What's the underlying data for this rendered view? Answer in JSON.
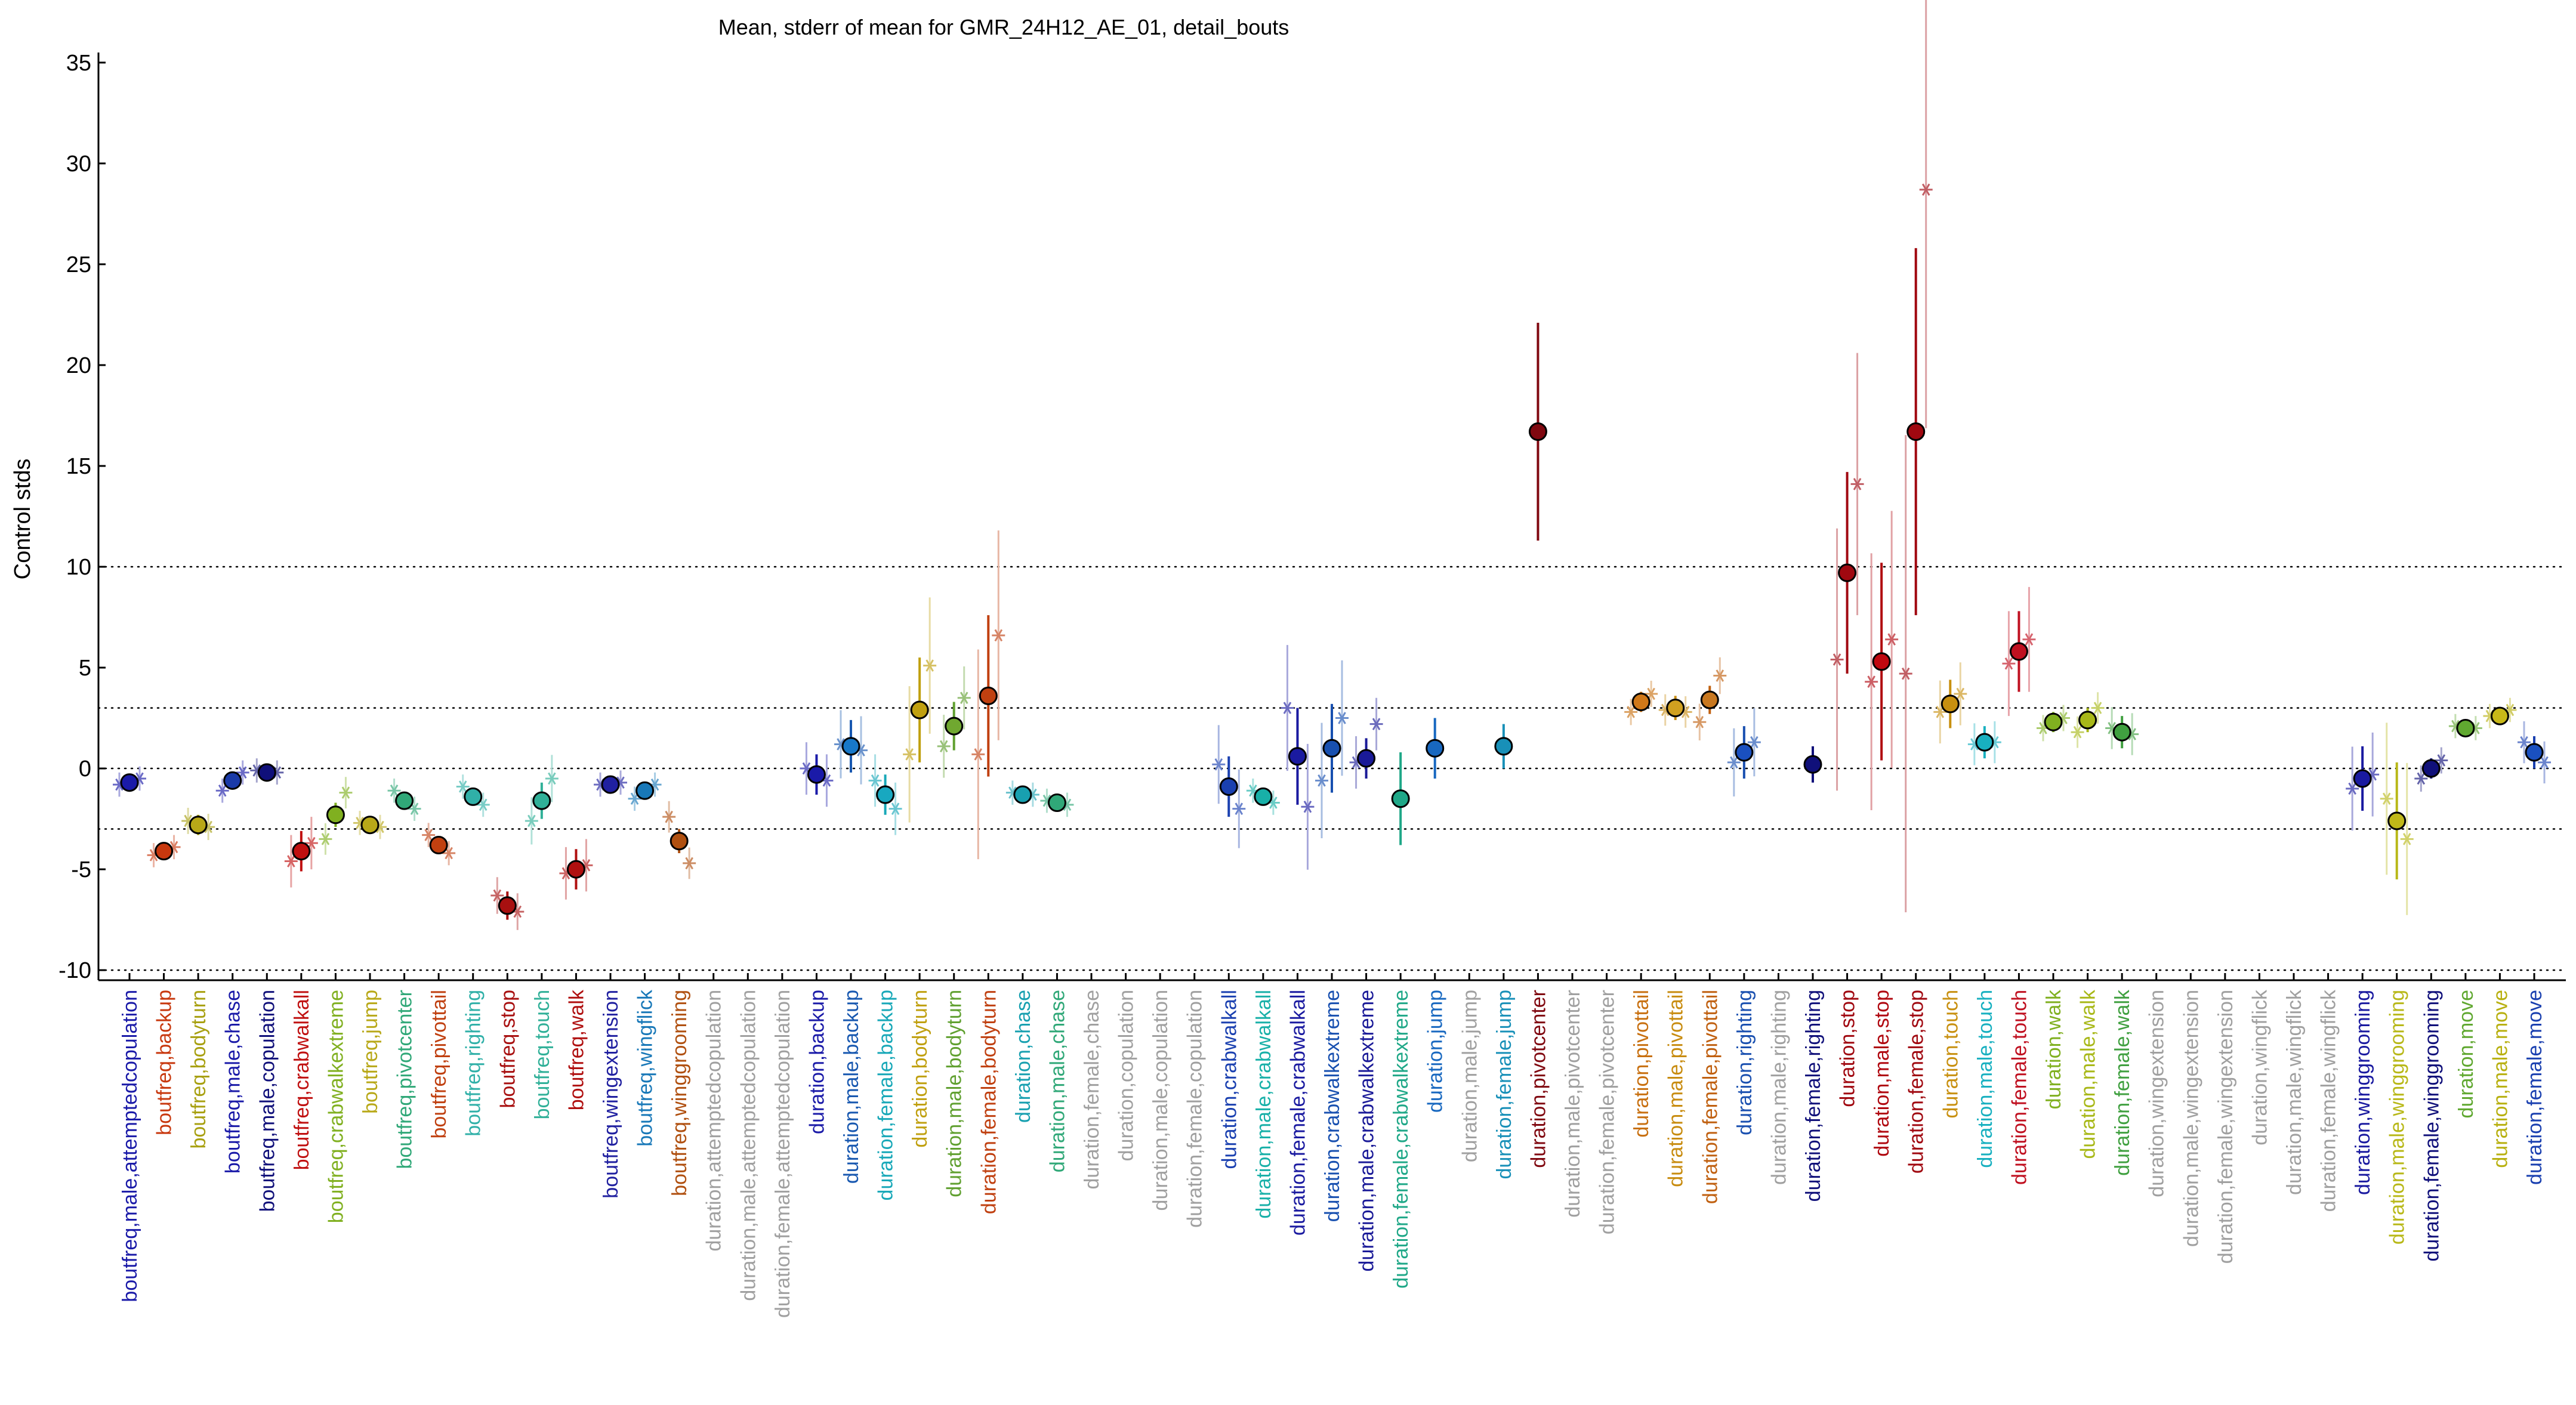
{
  "chart_data": {
    "type": "scatter",
    "title": "Mean, stderr of mean for GMR_24H12_AE_01, detail_bouts",
    "ylabel": "Control stds",
    "ylim": [
      -10.5,
      35.5
    ],
    "yticks": [
      -10,
      -5,
      0,
      5,
      10,
      15,
      20,
      25,
      30,
      35
    ],
    "hlines": [
      -10,
      -3,
      0,
      3,
      10
    ],
    "grid": false,
    "categories": [
      {
        "label": "boutfreq,male,attemptedcopulation",
        "color": "#1a1aa8",
        "mean": -0.7,
        "se": 0.15,
        "fill": "#1a1aa8",
        "stars": [
          -0.8,
          -0.5
        ]
      },
      {
        "label": "boutfreq,backup",
        "color": "#c8380e",
        "mean": -4.1,
        "se": 0.35,
        "fill": "#c8380e",
        "stars": [
          -4.3,
          -3.9
        ]
      },
      {
        "label": "boutfreq,bodyturn",
        "color": "#a8a010",
        "mean": -2.8,
        "se": 0.5,
        "fill": "#b8a818",
        "stars": [
          -2.6,
          -2.9
        ]
      },
      {
        "label": "boutfreq,male,chase",
        "color": "#1a1aa8",
        "mean": -0.6,
        "se": 0.2,
        "fill": "#1a3aa8",
        "stars": [
          -1.1,
          -0.2
        ]
      },
      {
        "label": "boutfreq,male,copulation",
        "color": "#10107a",
        "mean": -0.2,
        "se": 0.15,
        "fill": "#10107a",
        "stars": [
          -0.1,
          -0.2
        ]
      },
      {
        "label": "boutfreq,crabwalkall",
        "color": "#c01010",
        "mean": -4.1,
        "se": 1.0,
        "fill": "#c01010",
        "stars": [
          -4.6,
          -3.7
        ]
      },
      {
        "label": "boutfreq,crabwalkextreme",
        "color": "#80b020",
        "mean": -2.3,
        "se": 0.6,
        "fill": "#80b020",
        "stars": [
          -3.5,
          -1.2
        ]
      },
      {
        "label": "boutfreq,jump",
        "color": "#b8a818",
        "mean": -2.8,
        "se": 0.15,
        "fill": "#b8a818",
        "stars": [
          -2.7,
          -2.9
        ]
      },
      {
        "label": "boutfreq,pivotcenter",
        "color": "#30a878",
        "mean": -1.6,
        "se": 0.4,
        "fill": "#30a878",
        "stars": [
          -1.1,
          -2.0
        ]
      },
      {
        "label": "boutfreq,pivottail",
        "color": "#c04010",
        "mean": -3.8,
        "se": 0.4,
        "fill": "#c04010",
        "stars": [
          -3.3,
          -4.2
        ]
      },
      {
        "label": "boutfreq,righting",
        "color": "#30b0a8",
        "mean": -1.4,
        "se": 0.2,
        "fill": "#30b0a8",
        "stars": [
          -0.9,
          -1.8
        ]
      },
      {
        "label": "boutfreq,stop",
        "color": "#a81010",
        "mean": -6.8,
        "se": 0.7,
        "fill": "#a81010",
        "stars": [
          -6.3,
          -7.1
        ]
      },
      {
        "label": "boutfreq,touch",
        "color": "#30b098",
        "mean": -1.6,
        "se": 0.9,
        "fill": "#30b098",
        "stars": [
          -2.6,
          -0.5
        ]
      },
      {
        "label": "boutfreq,walk",
        "color": "#b01010",
        "mean": -5.0,
        "se": 1.0,
        "fill": "#b01010",
        "stars": [
          -5.2,
          -4.8
        ]
      },
      {
        "label": "boutfreq,wingextension",
        "color": "#2020a0",
        "mean": -0.8,
        "se": 0.15,
        "fill": "#2020a0",
        "stars": [
          -0.8,
          -0.7
        ]
      },
      {
        "label": "boutfreq,wingflick",
        "color": "#1878b8",
        "mean": -1.1,
        "se": 0.3,
        "fill": "#1878b8",
        "stars": [
          -1.5,
          -0.8
        ]
      },
      {
        "label": "boutfreq,winggrooming",
        "color": "#b05010",
        "mean": -3.6,
        "se": 0.6,
        "fill": "#b05010",
        "stars": [
          -2.4,
          -4.7
        ]
      },
      {
        "label": "duration,attemptedcopulation",
        "color": "#a0a0a0"
      },
      {
        "label": "duration,male,attemptedcopulation",
        "color": "#a0a0a0"
      },
      {
        "label": "duration,female,attemptedcopulation",
        "color": "#a0a0a0"
      },
      {
        "label": "duration,backup",
        "color": "#1a1aa8",
        "mean": -0.3,
        "se": 1.0,
        "fill": "#1a1aa8",
        "stars": [
          0.0,
          -0.6
        ]
      },
      {
        "label": "duration,male,backup",
        "color": "#1858b0",
        "mean": 1.1,
        "se": 1.3,
        "fill": "#1878c8",
        "stars": [
          1.2,
          0.9
        ]
      },
      {
        "label": "duration,female,backup",
        "color": "#18a8b8",
        "mean": -1.3,
        "se": 1.0,
        "fill": "#18a8c0",
        "stars": [
          -0.6,
          -2.0
        ]
      },
      {
        "label": "duration,bodyturn",
        "color": "#c0a010",
        "mean": 2.9,
        "se": 2.6,
        "fill": "#c0a010",
        "stars": [
          0.7,
          5.1
        ]
      },
      {
        "label": "duration,male,bodyturn",
        "color": "#60a030",
        "mean": 2.1,
        "se": 1.2,
        "fill": "#70a830",
        "stars": [
          1.1,
          3.5
        ]
      },
      {
        "label": "duration,female,bodyturn",
        "color": "#c04010",
        "mean": 3.6,
        "se": 4.0,
        "fill": "#c04010",
        "stars": [
          0.7,
          6.6
        ]
      },
      {
        "label": "duration,chase",
        "color": "#18a0b0",
        "mean": -1.3,
        "se": 0.15,
        "fill": "#18a0b0",
        "stars": [
          -1.2,
          -1.3
        ]
      },
      {
        "label": "duration,male,chase",
        "color": "#30a878",
        "mean": -1.7,
        "se": 0.15,
        "fill": "#30a878",
        "stars": [
          -1.6,
          -1.8
        ]
      },
      {
        "label": "duration,female,chase",
        "color": "#a0a0a0"
      },
      {
        "label": "duration,copulation",
        "color": "#a0a0a0"
      },
      {
        "label": "duration,male,copulation",
        "color": "#a0a0a0"
      },
      {
        "label": "duration,female,copulation",
        "color": "#a0a0a0"
      },
      {
        "label": "duration,crabwalkall",
        "color": "#1a40b0",
        "mean": -0.9,
        "se": 1.5,
        "fill": "#1a40b0",
        "stars": [
          0.2,
          -2.0
        ]
      },
      {
        "label": "duration,male,crabwalkall",
        "color": "#18b0a8",
        "mean": -1.4,
        "se": 0.3,
        "fill": "#18b0a8",
        "stars": [
          -1.1,
          -1.7
        ]
      },
      {
        "label": "duration,female,crabwalkall",
        "color": "#1a1aa0",
        "mean": 0.6,
        "se": 2.4,
        "fill": "#1a1aa0",
        "stars": [
          3.0,
          -1.9
        ]
      },
      {
        "label": "duration,crabwalkextreme",
        "color": "#1850b0",
        "mean": 1.0,
        "se": 2.2,
        "fill": "#1850b0",
        "stars": [
          -0.6,
          2.5
        ]
      },
      {
        "label": "duration,male,crabwalkextreme",
        "color": "#1a1a98",
        "mean": 0.5,
        "se": 1.0,
        "fill": "#1a1a98",
        "stars": [
          0.3,
          2.2
        ]
      },
      {
        "label": "duration,female,crabwalkextreme",
        "color": "#20a888",
        "mean": -1.5,
        "se": 2.3,
        "fill": "#20a888"
      },
      {
        "label": "duration,jump",
        "color": "#1868c0",
        "mean": 1.0,
        "se": 1.5,
        "fill": "#1868c0"
      },
      {
        "label": "duration,male,jump",
        "color": "#a0a0a0"
      },
      {
        "label": "duration,female,jump",
        "color": "#1890b8",
        "mean": 1.1,
        "se": 1.1,
        "fill": "#1890b8"
      },
      {
        "label": "duration,pivotcenter",
        "color": "#800810",
        "mean": 16.7,
        "se": 5.4,
        "fill": "#800810"
      },
      {
        "label": "duration,male,pivotcenter",
        "color": "#a0a0a0"
      },
      {
        "label": "duration,female,pivotcenter",
        "color": "#a0a0a0"
      },
      {
        "label": "duration,pivottail",
        "color": "#c87010",
        "mean": 3.3,
        "se": 0.5,
        "fill": "#d07818",
        "stars": [
          2.8,
          3.7
        ]
      },
      {
        "label": "duration,male,pivottail",
        "color": "#c88c10",
        "mean": 3.0,
        "se": 0.6,
        "fill": "#d0a020",
        "stars": [
          2.9,
          2.8
        ]
      },
      {
        "label": "duration,female,pivottail",
        "color": "#c06010",
        "mean": 3.4,
        "se": 0.7,
        "fill": "#c87820",
        "stars": [
          2.3,
          4.6
        ]
      },
      {
        "label": "duration,righting",
        "color": "#1a50b0",
        "mean": 0.8,
        "se": 1.3,
        "fill": "#1a50c0",
        "stars": [
          0.3,
          1.3
        ]
      },
      {
        "label": "duration,male,righting",
        "color": "#a0a0a0"
      },
      {
        "label": "duration,female,righting",
        "color": "#10107a",
        "mean": 0.2,
        "se": 0.9,
        "fill": "#10107a"
      },
      {
        "label": "duration,stop",
        "color": "#a00810",
        "mean": 9.7,
        "se": 5.0,
        "fill": "#a00810",
        "stars": [
          5.4,
          14.1
        ]
      },
      {
        "label": "duration,male,stop",
        "color": "#b00810",
        "mean": 5.3,
        "se": 4.9,
        "fill": "#c00810",
        "stars": [
          4.3,
          6.4
        ]
      },
      {
        "label": "duration,female,stop",
        "color": "#a00810",
        "mean": 16.7,
        "se": 9.1,
        "fill": "#a00810",
        "stars": [
          4.7,
          28.7
        ]
      },
      {
        "label": "duration,touch",
        "color": "#c89010",
        "mean": 3.2,
        "se": 1.2,
        "fill": "#c89010",
        "stars": [
          2.8,
          3.7
        ]
      },
      {
        "label": "duration,male,touch",
        "color": "#18b0c0",
        "mean": 1.3,
        "se": 0.8,
        "fill": "#18b0c0",
        "stars": [
          1.2,
          1.3
        ]
      },
      {
        "label": "duration,female,touch",
        "color": "#c01020",
        "mean": 5.8,
        "se": 2.0,
        "fill": "#c01020",
        "stars": [
          5.2,
          6.4
        ]
      },
      {
        "label": "duration,walk",
        "color": "#80b020",
        "mean": 2.3,
        "se": 0.5,
        "fill": "#80b020",
        "stars": [
          2.0,
          2.5
        ]
      },
      {
        "label": "duration,male,walk",
        "color": "#a8b818",
        "mean": 2.4,
        "se": 0.6,
        "fill": "#a8b818",
        "stars": [
          1.8,
          3.0
        ]
      },
      {
        "label": "duration,female,walk",
        "color": "#40a040",
        "mean": 1.8,
        "se": 0.8,
        "fill": "#40a040",
        "stars": [
          2.0,
          1.7
        ]
      },
      {
        "label": "duration,wingextension",
        "color": "#a0a0a0"
      },
      {
        "label": "duration,male,wingextension",
        "color": "#a0a0a0"
      },
      {
        "label": "duration,female,wingextension",
        "color": "#a0a0a0"
      },
      {
        "label": "duration,wingflick",
        "color": "#a0a0a0"
      },
      {
        "label": "duration,male,wingflick",
        "color": "#a0a0a0"
      },
      {
        "label": "duration,female,wingflick",
        "color": "#a0a0a0"
      },
      {
        "label": "duration,winggrooming",
        "color": "#1a1aa0",
        "mean": -0.5,
        "se": 1.6,
        "fill": "#1a1aa0",
        "stars": [
          -1.0,
          -0.3
        ]
      },
      {
        "label": "duration,male,winggrooming",
        "color": "#b8b818",
        "mean": -2.6,
        "se": 2.9,
        "fill": "#c0b818",
        "stars": [
          -1.5,
          -3.5
        ]
      },
      {
        "label": "duration,female,winggrooming",
        "color": "#10107a",
        "mean": 0.0,
        "se": 0.5,
        "fill": "#10107a",
        "stars": [
          -0.5,
          0.4
        ]
      },
      {
        "label": "duration,move",
        "color": "#60a830",
        "mean": 2.0,
        "se": 0.3,
        "fill": "#60a830",
        "stars": [
          2.1,
          2.0
        ]
      },
      {
        "label": "duration,male,move",
        "color": "#b8b010",
        "mean": 2.6,
        "se": 0.4,
        "fill": "#c8b818",
        "stars": [
          2.6,
          2.9
        ]
      },
      {
        "label": "duration,female,move",
        "color": "#1a40b0",
        "mean": 0.8,
        "se": 0.8,
        "fill": "#1a50c0",
        "stars": [
          1.3,
          0.3
        ]
      }
    ]
  }
}
